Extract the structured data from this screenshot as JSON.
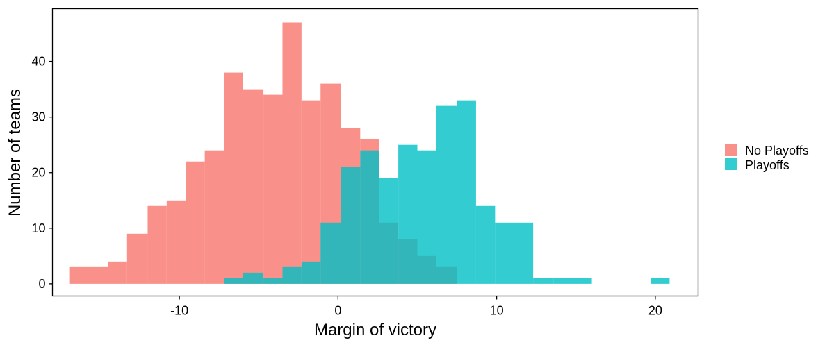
{
  "chart_data": {
    "type": "bar",
    "subtype": "overlapping-histogram",
    "title": "",
    "xlabel": "Margin of victory",
    "ylabel": "Number of teams",
    "xlim": [
      -18.0,
      22.7
    ],
    "ylim": [
      -2.2,
      49.5
    ],
    "x_ticks": [
      -10,
      0,
      10,
      20
    ],
    "x_tick_labels": [
      "-10",
      "0",
      "10",
      "20"
    ],
    "y_ticks": [
      0,
      10,
      20,
      30,
      40
    ],
    "y_tick_labels": [
      "0",
      "10",
      "20",
      "30",
      "40"
    ],
    "grid": false,
    "legend_position": "right",
    "bins": [
      [
        -16.9,
        -15.7
      ],
      [
        -15.7,
        -14.5
      ],
      [
        -14.5,
        -13.3
      ],
      [
        -13.3,
        -12.0
      ],
      [
        -12.0,
        -10.8
      ],
      [
        -10.8,
        -9.6
      ],
      [
        -9.6,
        -8.4
      ],
      [
        -8.4,
        -7.2
      ],
      [
        -7.2,
        -6.0
      ],
      [
        -6.0,
        -4.7
      ],
      [
        -4.7,
        -3.5
      ],
      [
        -3.5,
        -2.3
      ],
      [
        -2.3,
        -1.1
      ],
      [
        -1.1,
        0.2
      ],
      [
        0.2,
        1.4
      ],
      [
        1.4,
        2.6
      ],
      [
        2.6,
        3.8
      ],
      [
        3.8,
        5.0
      ],
      [
        5.0,
        6.2
      ],
      [
        6.2,
        7.5
      ],
      [
        7.5,
        8.7
      ],
      [
        8.7,
        9.9
      ],
      [
        9.9,
        11.1
      ],
      [
        11.1,
        12.3
      ],
      [
        12.3,
        13.6
      ],
      [
        13.6,
        14.8
      ],
      [
        14.8,
        16.0
      ],
      [
        16.0,
        17.2
      ],
      [
        17.2,
        18.4
      ],
      [
        18.4,
        19.7
      ],
      [
        19.7,
        20.9
      ]
    ],
    "series": [
      {
        "name": "No Playoffs",
        "color": "#F8766D",
        "values": [
          3,
          3,
          4,
          9,
          14,
          15,
          22,
          24,
          38,
          35,
          34,
          47,
          33,
          36,
          28,
          26,
          11,
          8,
          5,
          3,
          0,
          0,
          0,
          0,
          0,
          0,
          0,
          0,
          0,
          0,
          0
        ]
      },
      {
        "name": "Playoffs",
        "color": "#00BFC4",
        "values": [
          0,
          0,
          0,
          0,
          0,
          0,
          0,
          0,
          1,
          2,
          1,
          3,
          4,
          11,
          21,
          24,
          19,
          25,
          24,
          32,
          33,
          14,
          11,
          11,
          1,
          1,
          1,
          0,
          0,
          0,
          1
        ]
      }
    ]
  }
}
